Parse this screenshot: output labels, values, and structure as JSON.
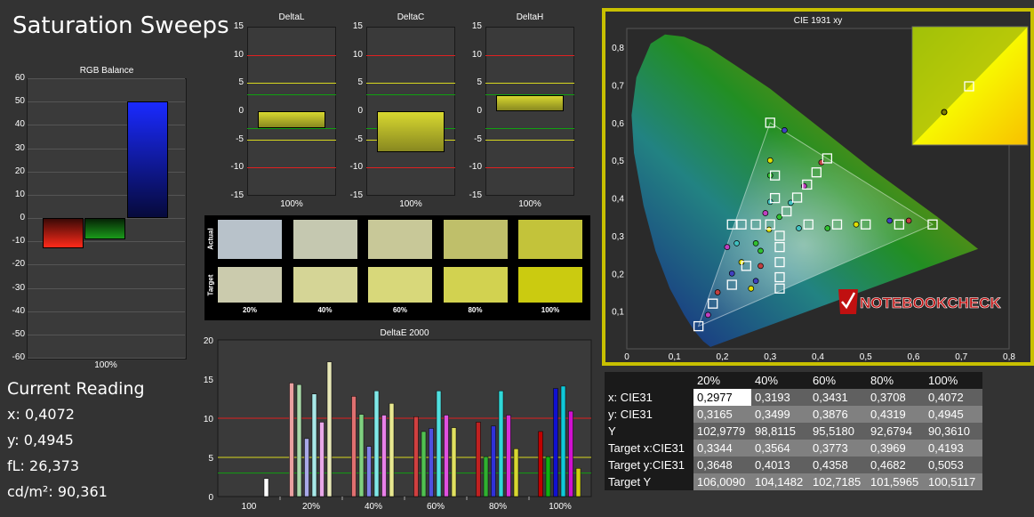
{
  "page": {
    "title": "Saturation Sweeps"
  },
  "colors": {
    "red": "#ff2a1a",
    "green": "#1a9a1a",
    "blue": "#1a2aff",
    "cie_frame": "#c8c000",
    "limit_red": "#e02020",
    "limit_yellow": "#d8d820",
    "limit_green": "#10a010"
  },
  "chart_data": [
    {
      "id": "rgb-balance",
      "type": "bar",
      "title": "RGB Balance",
      "categories": [
        "100%"
      ],
      "ylim": [
        -60,
        60
      ],
      "yticks": [
        60,
        50,
        40,
        30,
        20,
        10,
        0,
        -10,
        -20,
        -30,
        -40,
        -50,
        -60
      ],
      "series": [
        {
          "color": "red",
          "values": [
            -13
          ]
        },
        {
          "color": "green",
          "values": [
            -9
          ]
        },
        {
          "color": "blue",
          "values": [
            50
          ]
        }
      ]
    },
    {
      "id": "deltaL",
      "type": "bar",
      "title": "DeltaL",
      "categories": [
        "100%"
      ],
      "ylim": [
        -15,
        15
      ],
      "yticks": [
        15,
        10,
        5,
        0,
        -5,
        -10,
        -15
      ],
      "values": [
        -3
      ],
      "color": "#cfcf20"
    },
    {
      "id": "deltaC",
      "type": "bar",
      "title": "DeltaC",
      "categories": [
        "100%"
      ],
      "ylim": [
        -15,
        15
      ],
      "yticks": [
        15,
        10,
        5,
        0,
        -5,
        -10,
        -15
      ],
      "values": [
        -7.2
      ],
      "color": "#cfcf20"
    },
    {
      "id": "deltaH",
      "type": "bar",
      "title": "DeltaH",
      "categories": [
        "100%"
      ],
      "ylim": [
        -15,
        15
      ],
      "yticks": [
        15,
        10,
        5,
        0,
        -5,
        -10,
        -15
      ],
      "values": [
        2.9
      ],
      "color": "#cfcf20"
    },
    {
      "id": "swatches",
      "type": "table",
      "row_labels": [
        "Actual",
        "Target"
      ],
      "columns": [
        "20%",
        "40%",
        "60%",
        "80%",
        "100%"
      ],
      "actual": [
        "#b8c2ca",
        "#c5c8b0",
        "#c8c898",
        "#bfbf6a",
        "#c3c33a"
      ],
      "target": [
        "#cbcbad",
        "#d5d596",
        "#d8d87a",
        "#d2d250",
        "#cbcb10"
      ]
    },
    {
      "id": "deltaE2000",
      "type": "bar",
      "title": "DeltaE 2000",
      "categories": [
        "100",
        "20%",
        "40%",
        "60%",
        "80%",
        "100%"
      ],
      "ylim": [
        0,
        20
      ],
      "yticks": [
        20,
        15,
        10,
        5,
        0
      ],
      "groups": [
        {
          "bars": [
            {
              "v": 2.3,
              "c": "#ffffff"
            }
          ]
        },
        {
          "bars": [
            {
              "v": 14.5,
              "c": "#e8a0a0"
            },
            {
              "v": 14.3,
              "c": "#a8d8a8"
            },
            {
              "v": 7.4,
              "c": "#a8a8e8"
            },
            {
              "v": 13.1,
              "c": "#a8e8e8"
            },
            {
              "v": 9.5,
              "c": "#e8a8e8"
            },
            {
              "v": 17.2,
              "c": "#e8e8b8"
            }
          ]
        },
        {
          "bars": [
            {
              "v": 12.8,
              "c": "#e07070"
            },
            {
              "v": 10.5,
              "c": "#80d080"
            },
            {
              "v": 6.4,
              "c": "#8080e8"
            },
            {
              "v": 13.5,
              "c": "#80e8e8"
            },
            {
              "v": 10.4,
              "c": "#e880e8"
            },
            {
              "v": 11.9,
              "c": "#e8e890"
            }
          ]
        },
        {
          "bars": [
            {
              "v": 10.2,
              "c": "#d04040"
            },
            {
              "v": 8.3,
              "c": "#50c050"
            },
            {
              "v": 8.7,
              "c": "#5050e0"
            },
            {
              "v": 13.5,
              "c": "#50e0e0"
            },
            {
              "v": 10.4,
              "c": "#e050e0"
            },
            {
              "v": 8.8,
              "c": "#e0e060"
            }
          ]
        },
        {
          "bars": [
            {
              "v": 9.5,
              "c": "#c02020"
            },
            {
              "v": 5.1,
              "c": "#30b030"
            },
            {
              "v": 9.0,
              "c": "#3030d8"
            },
            {
              "v": 13.5,
              "c": "#30d8d8"
            },
            {
              "v": 10.4,
              "c": "#d830d8"
            },
            {
              "v": 6.1,
              "c": "#d8d830"
            }
          ]
        },
        {
          "bars": [
            {
              "v": 8.3,
              "c": "#c00000"
            },
            {
              "v": 5.1,
              "c": "#10b010"
            },
            {
              "v": 13.8,
              "c": "#1010d0"
            },
            {
              "v": 14.1,
              "c": "#10c8d8"
            },
            {
              "v": 10.9,
              "c": "#d010d0"
            },
            {
              "v": 3.6,
              "c": "#d0d010"
            }
          ]
        }
      ]
    },
    {
      "id": "cie1931",
      "type": "scatter",
      "title": "CIE 1931 xy",
      "xlim": [
        0,
        0.8
      ],
      "ylim": [
        0,
        0.85
      ],
      "xticks": [
        "0",
        "0,1",
        "0,2",
        "0,3",
        "0,4",
        "0,5",
        "0,6",
        "0,7",
        "0,8"
      ],
      "yticks": [
        "0,8",
        "0,7",
        "0,6",
        "0,5",
        "0,4",
        "0,3",
        "0,2",
        "0,1"
      ],
      "gamut": [
        [
          0.64,
          0.33
        ],
        [
          0.3,
          0.6
        ],
        [
          0.15,
          0.06
        ]
      ],
      "targets": [
        [
          0.3344,
          0.3648
        ],
        [
          0.3564,
          0.4013
        ],
        [
          0.3773,
          0.4358
        ],
        [
          0.3969,
          0.4682
        ],
        [
          0.4193,
          0.5053
        ],
        [
          0.3,
          0.6
        ],
        [
          0.31,
          0.46
        ],
        [
          0.31,
          0.4
        ],
        [
          0.3,
          0.33
        ],
        [
          0.27,
          0.33
        ],
        [
          0.24,
          0.33
        ],
        [
          0.22,
          0.33
        ],
        [
          0.64,
          0.33
        ],
        [
          0.57,
          0.33
        ],
        [
          0.5,
          0.33
        ],
        [
          0.44,
          0.33
        ],
        [
          0.38,
          0.33
        ],
        [
          0.15,
          0.06
        ],
        [
          0.18,
          0.12
        ],
        [
          0.22,
          0.17
        ],
        [
          0.25,
          0.22
        ],
        [
          0.32,
          0.3
        ],
        [
          0.32,
          0.27
        ],
        [
          0.32,
          0.23
        ],
        [
          0.32,
          0.19
        ],
        [
          0.32,
          0.16
        ]
      ],
      "actual": [
        [
          0.2977,
          0.3165
        ],
        [
          0.3193,
          0.3499
        ],
        [
          0.3431,
          0.3876
        ],
        [
          0.3708,
          0.4319
        ],
        [
          0.4072,
          0.4945
        ],
        [
          0.33,
          0.58
        ],
        [
          0.3,
          0.5
        ],
        [
          0.3,
          0.46
        ],
        [
          0.3,
          0.39
        ],
        [
          0.29,
          0.36
        ],
        [
          0.59,
          0.34
        ],
        [
          0.55,
          0.34
        ],
        [
          0.48,
          0.33
        ],
        [
          0.42,
          0.32
        ],
        [
          0.36,
          0.32
        ],
        [
          0.17,
          0.09
        ],
        [
          0.19,
          0.15
        ],
        [
          0.22,
          0.2
        ],
        [
          0.24,
          0.23
        ],
        [
          0.27,
          0.28
        ],
        [
          0.23,
          0.28
        ],
        [
          0.21,
          0.27
        ],
        [
          0.28,
          0.22
        ],
        [
          0.27,
          0.18
        ],
        [
          0.26,
          0.16
        ],
        [
          0.28,
          0.26
        ]
      ],
      "inset_target": [
        0.4193,
        0.5053
      ],
      "inset_actual": [
        0.4072,
        0.4945
      ]
    }
  ],
  "watermark": "NOTEBOOKCHECK",
  "current_reading": {
    "heading": "Current Reading",
    "x": "x: 0,4072",
    "y": "y: 0,4945",
    "fl": "fL: 26,373",
    "cd": "cd/m²: 90,361"
  },
  "table": {
    "columns": [
      "20%",
      "40%",
      "60%",
      "80%",
      "100%"
    ],
    "rows": [
      {
        "label": "x: CIE31",
        "values": [
          "0,2977",
          "0,3193",
          "0,3431",
          "0,3708",
          "0,4072"
        ]
      },
      {
        "label": "y: CIE31",
        "values": [
          "0,3165",
          "0,3499",
          "0,3876",
          "0,4319",
          "0,4945"
        ]
      },
      {
        "label": "Y",
        "values": [
          "102,9779",
          "98,8115",
          "95,5180",
          "92,6794",
          "90,3610"
        ]
      },
      {
        "label": "Target x:CIE31",
        "values": [
          "0,3344",
          "0,3564",
          "0,3773",
          "0,3969",
          "0,4193"
        ]
      },
      {
        "label": "Target y:CIE31",
        "values": [
          "0,3648",
          "0,4013",
          "0,4358",
          "0,4682",
          "0,5053"
        ]
      },
      {
        "label": "Target Y",
        "values": [
          "106,0090",
          "104,1482",
          "102,7185",
          "101,5965",
          "100,5117"
        ]
      }
    ]
  }
}
